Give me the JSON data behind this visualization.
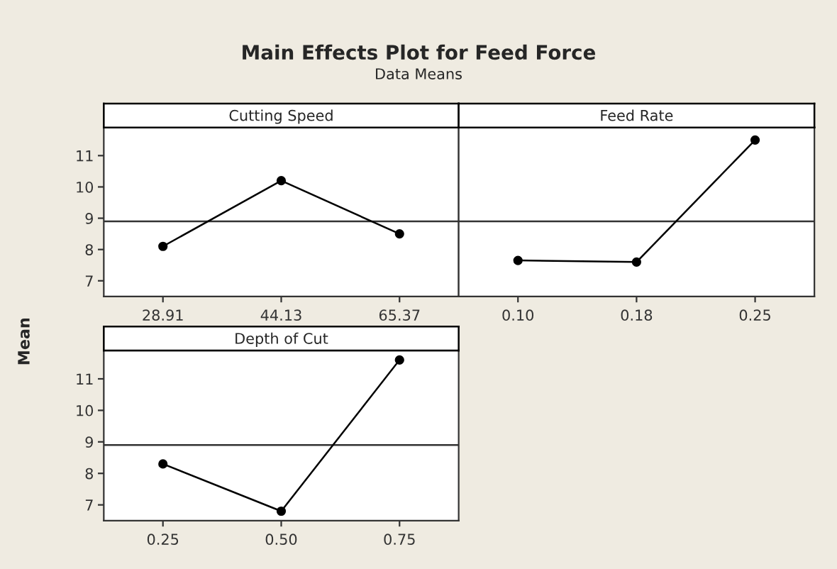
{
  "chart_data": [
    {
      "type": "other",
      "title": "Main Effects Plot for Feed Force",
      "subtitle": "Data Means"
    },
    {
      "type": "line",
      "title": "Cutting Speed",
      "ylabel": "Mean",
      "categories": [
        "28.91",
        "44.13",
        "65.37"
      ],
      "values": [
        8.1,
        10.2,
        8.5
      ],
      "color": "#000000",
      "marker": "circle",
      "ylim": [
        6.5,
        11.9
      ],
      "yticks": [
        7,
        8,
        9,
        10,
        11
      ],
      "ref_lines": [
        {
          "axis": "y",
          "value": 8.9
        }
      ],
      "grid": false
    },
    {
      "type": "line",
      "title": "Feed Rate",
      "categories": [
        "0.10",
        "0.18",
        "0.25"
      ],
      "values": [
        7.65,
        7.6,
        11.5
      ],
      "color": "#000000",
      "marker": "circle",
      "ylim": [
        6.5,
        11.9
      ],
      "tick_labels": "x",
      "ref_lines": [
        {
          "axis": "y",
          "value": 8.9
        }
      ],
      "grid": false
    },
    {
      "type": "line",
      "title": "Depth of Cut",
      "categories": [
        "0.25",
        "0.50",
        "0.75"
      ],
      "values": [
        8.3,
        6.8,
        11.6
      ],
      "color": "#000000",
      "marker": "circle",
      "ylim": [
        6.5,
        11.9
      ],
      "yticks": [
        7,
        8,
        9,
        10,
        11
      ],
      "ref_lines": [
        {
          "axis": "y",
          "value": 8.9
        }
      ],
      "grid": false
    }
  ]
}
